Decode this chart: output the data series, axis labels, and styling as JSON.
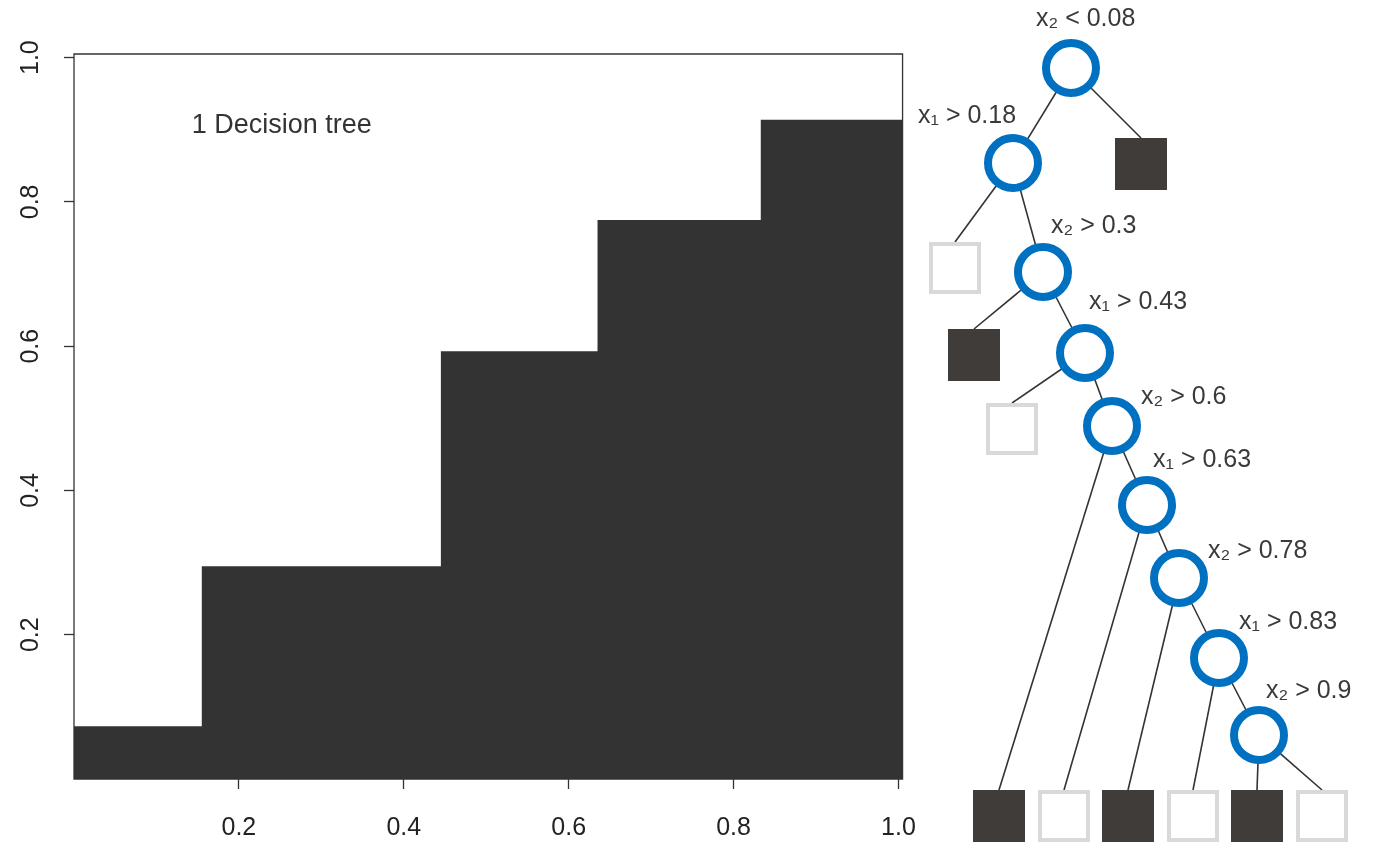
{
  "chart_data": {
    "type": "area",
    "annotations": [
      "1 Decision tree",
      "x₂ < 0.08",
      "x₁ > 0.18",
      "x₂ > 0.3",
      "x₁ > 0.43",
      "x₂ > 0.6",
      "x₁ > 0.63",
      "x₂ > 0.78",
      "x₁ > 0.83",
      "x₂ > 0.9"
    ],
    "x": [
      0,
      0.155,
      0.155,
      0.445,
      0.445,
      0.635,
      0.635,
      0.833,
      0.833,
      1.005
    ],
    "values": [
      0.073,
      0.073,
      0.295,
      0.295,
      0.593,
      0.593,
      0.775,
      0.775,
      0.914,
      0.914
    ],
    "color": "#333333",
    "xlim": [
      0,
      1.005
    ],
    "ylim": [
      0,
      1.005
    ],
    "xticks": [
      0.2,
      0.4,
      0.6,
      0.8,
      {
        "value": 1,
        "label": "1.0"
      }
    ],
    "yticks": [
      0.2,
      0.4,
      0.6,
      0.8,
      {
        "value": 1,
        "label": "1.0"
      }
    ]
  }
}
